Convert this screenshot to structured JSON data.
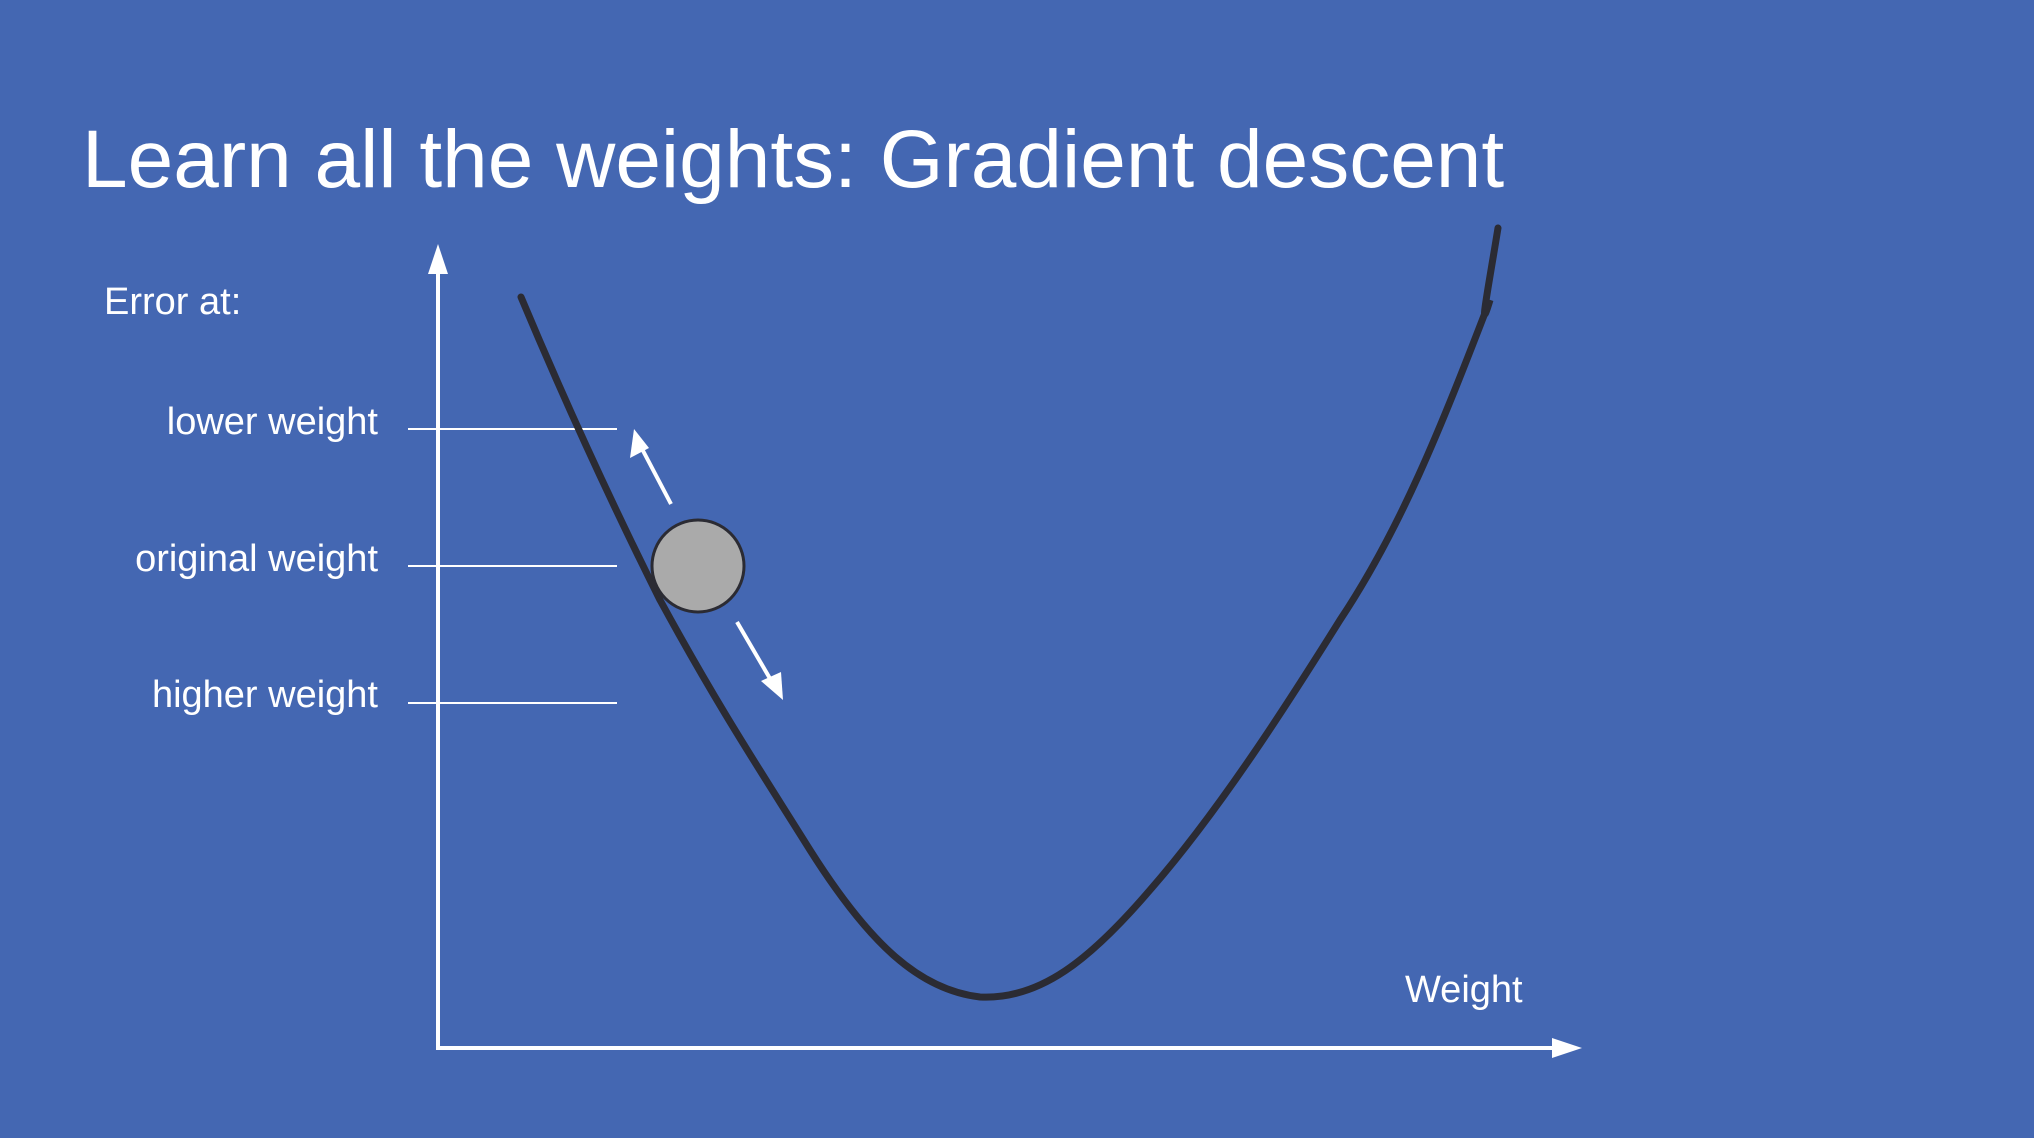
{
  "slide": {
    "title": "Learn all the weights: Gradient descent",
    "background_color": "#4467b2"
  },
  "diagram": {
    "y_axis_heading": "Error at:",
    "x_axis_label": "Weight",
    "levels": [
      {
        "label": "lower weight"
      },
      {
        "label": "original weight"
      },
      {
        "label": "higher weight"
      }
    ],
    "ball": {
      "color": "#aaaaaa",
      "outline_color": "#2b2b33"
    },
    "curve_color": "#2b2b33",
    "axis_color": "#ffffff",
    "arrows": [
      "up-left",
      "down-right"
    ]
  }
}
